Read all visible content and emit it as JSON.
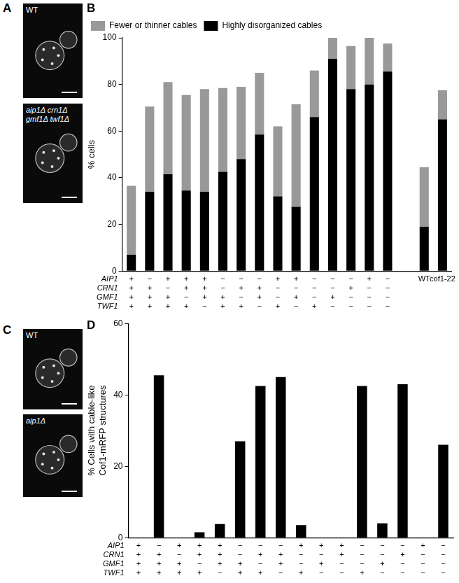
{
  "panels": [
    {
      "label": "A",
      "images": [
        {
          "caption": [
            "WT"
          ]
        },
        {
          "caption": [
            "aip1Δ crn1Δ",
            "gmf1Δ twf1Δ"
          ]
        }
      ]
    },
    {
      "label": "C",
      "images": [
        {
          "caption": [
            "WT"
          ]
        },
        {
          "caption": [
            "aip1Δ"
          ]
        }
      ]
    }
  ],
  "chart_data": [
    {
      "panel": "B",
      "type": "bar",
      "stacked": true,
      "grid": false,
      "legend": "top left",
      "y_label": "% cells",
      "ylim": [
        0,
        100
      ],
      "yticks": [
        0,
        20,
        40,
        60,
        80,
        100
      ],
      "row_labels": [
        "AIP1",
        "CRN1",
        "GMF1",
        "TWF1"
      ],
      "categories": [
        [
          "+",
          "+",
          "+",
          "+"
        ],
        [
          "−",
          "+",
          "+",
          "+"
        ],
        [
          "+",
          "−",
          "+",
          "+"
        ],
        [
          "+",
          "+",
          "−",
          "+"
        ],
        [
          "+",
          "+",
          "+",
          "−"
        ],
        [
          "−",
          "−",
          "+",
          "+"
        ],
        [
          "−",
          "+",
          "−",
          "+"
        ],
        [
          "−",
          "+",
          "+",
          "−"
        ],
        [
          "+",
          "−",
          "−",
          "+"
        ],
        [
          "+",
          "−",
          "+",
          "−"
        ],
        [
          "−",
          "−",
          "−",
          "+"
        ],
        [
          "−",
          "−",
          "+",
          "−"
        ],
        [
          "−",
          "+",
          "−",
          "−"
        ],
        [
          "+",
          "−",
          "−",
          "−"
        ],
        [
          "−",
          "−",
          "−",
          "−"
        ],
        null,
        "WT",
        "cof1-22"
      ],
      "series": [
        {
          "name": "Fewer or thinner cables",
          "color": "#999999",
          "values": [
            29.5,
            36.5,
            39.5,
            41,
            44,
            36,
            31,
            26.5,
            30,
            44,
            20,
            9,
            18.5,
            20,
            12,
            null,
            25.5,
            12.5
          ]
        },
        {
          "name": "Highly disorganized cables",
          "color": "#000000",
          "values": [
            7,
            34,
            41.5,
            34.5,
            34,
            42.5,
            48,
            58.5,
            32,
            27.5,
            66,
            91,
            78,
            80,
            85.5,
            null,
            19,
            65
          ]
        }
      ]
    },
    {
      "panel": "D",
      "type": "bar",
      "grid": false,
      "color": "#000000",
      "y_label": [
        "% Cells with cable-like",
        "Cof1-mRFP structures"
      ],
      "ylim": [
        0,
        60
      ],
      "yticks": [
        0,
        20,
        40,
        60
      ],
      "row_labels": [
        "AIP1",
        "CRN1",
        "GMF1",
        "TWF1"
      ],
      "categories": [
        [
          "+",
          "+",
          "+",
          "+"
        ],
        [
          "−",
          "+",
          "+",
          "+"
        ],
        [
          "+",
          "−",
          "+",
          "+"
        ],
        [
          "+",
          "+",
          "−",
          "+"
        ],
        [
          "+",
          "+",
          "+",
          "−"
        ],
        [
          "−",
          "−",
          "+",
          "+"
        ],
        [
          "−",
          "+",
          "−",
          "+"
        ],
        [
          "−",
          "+",
          "+",
          "−"
        ],
        [
          "+",
          "−",
          "−",
          "+"
        ],
        [
          "+",
          "−",
          "+",
          "−"
        ],
        [
          "+",
          "+",
          "−",
          "−"
        ],
        [
          "−",
          "−",
          "−",
          "+"
        ],
        [
          "−",
          "−",
          "+",
          "−"
        ],
        [
          "−",
          "+",
          "−",
          "−"
        ],
        [
          "+",
          "−",
          "−",
          "−"
        ],
        [
          "−",
          "−",
          "−",
          "−"
        ]
      ],
      "values": [
        0,
        45.5,
        0,
        1.5,
        3.8,
        27,
        42.5,
        45,
        3.5,
        0,
        0,
        42.5,
        4,
        43,
        0,
        26
      ]
    }
  ]
}
